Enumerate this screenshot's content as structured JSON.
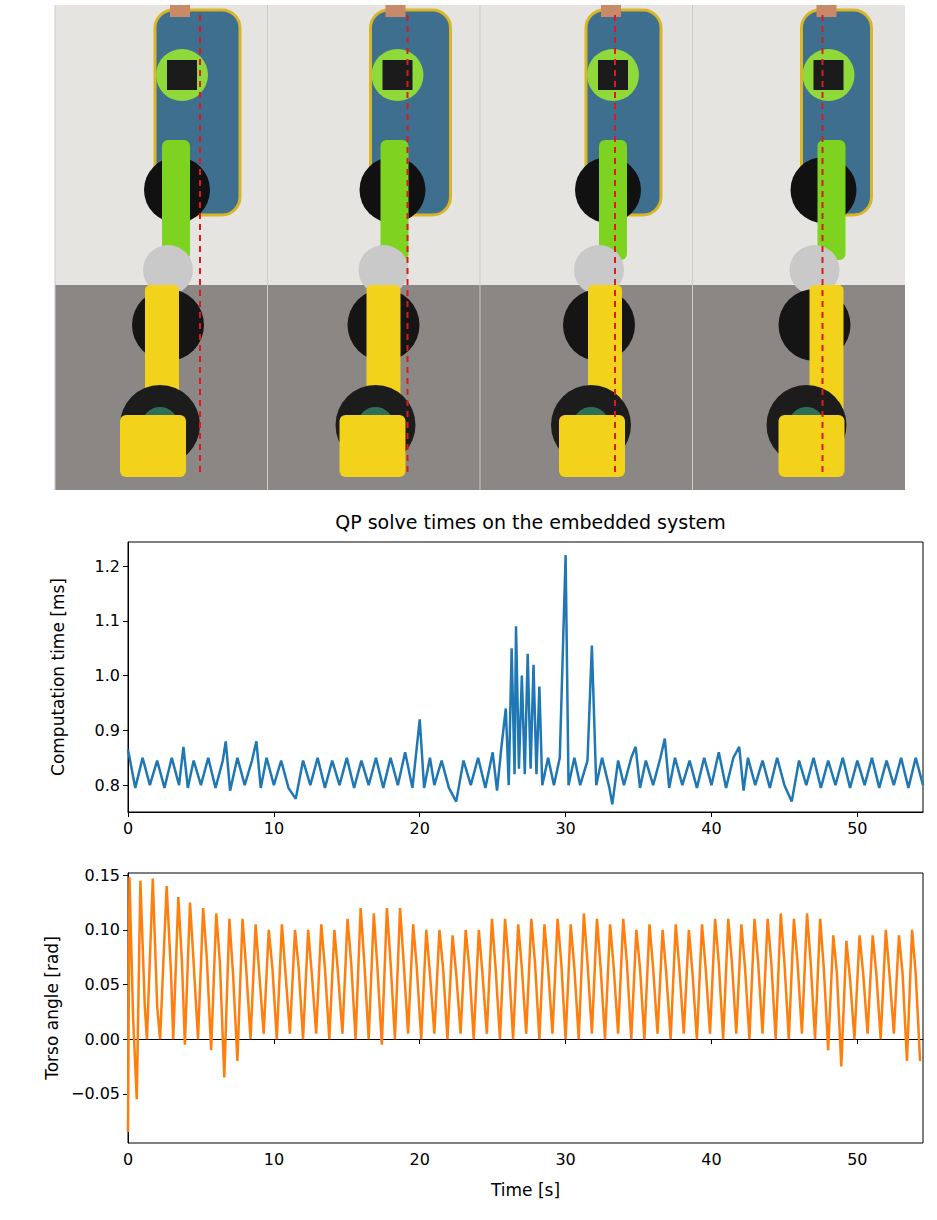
{
  "chart_data": [
    {
      "type": "line",
      "title": "QP solve times on the embedded system",
      "y_label": "Computation time [ms]",
      "color": "#1f77b4",
      "grid": false,
      "xlim": [
        0,
        54.5
      ],
      "xticks": [
        0,
        10,
        20,
        30,
        40,
        50
      ],
      "ylim": [
        0.751,
        1.244
      ],
      "yticks": [
        {
          "value": 0.8,
          "label": "0.8"
        },
        {
          "value": 0.9,
          "label": "0.9"
        },
        {
          "value": 1.0,
          "label": "1.0"
        },
        {
          "value": 1.1,
          "label": "1.1"
        },
        {
          "value": 1.2,
          "label": "1.2"
        }
      ],
      "x": [
        0,
        0.5,
        1,
        1.5,
        2,
        2.5,
        3,
        3.5,
        3.8,
        4.1,
        4.5,
        5,
        5.5,
        6,
        6.5,
        6.7,
        7,
        7.5,
        8,
        8.5,
        8.8,
        9.1,
        9.5,
        10,
        10.5,
        11,
        11.5,
        12,
        12.5,
        13,
        13.5,
        14,
        14.5,
        15,
        15.5,
        16,
        16.5,
        17,
        17.5,
        18,
        18.5,
        19,
        19.5,
        20,
        20.3,
        20.7,
        21,
        21.5,
        22,
        22.5,
        23,
        23.5,
        24,
        24.5,
        25,
        25.3,
        25.6,
        25.9,
        26.1,
        26.3,
        26.5,
        26.6,
        26.8,
        27.0,
        27.2,
        27.4,
        27.6,
        27.8,
        28.0,
        28.2,
        28.4,
        28.8,
        29.2,
        29.6,
        30.0,
        30.2,
        30.6,
        31,
        31.5,
        31.8,
        32.1,
        32.5,
        33,
        33.2,
        33.6,
        34,
        34.5,
        34.8,
        35.1,
        35.5,
        36,
        36.5,
        36.8,
        37.1,
        37.5,
        38,
        38.5,
        39,
        39.5,
        40,
        40.5,
        41,
        41.5,
        41.9,
        42.2,
        42.5,
        43,
        43.5,
        44,
        44.5,
        45,
        45.5,
        46,
        46.5,
        47,
        47.5,
        48,
        48.5,
        49,
        49.5,
        50,
        50.5,
        51,
        51.5,
        52,
        52.5,
        53,
        53.5,
        54,
        54.5
      ],
      "values": [
        0.865,
        0.795,
        0.85,
        0.8,
        0.845,
        0.795,
        0.85,
        0.8,
        0.87,
        0.795,
        0.845,
        0.8,
        0.85,
        0.795,
        0.845,
        0.88,
        0.79,
        0.85,
        0.8,
        0.845,
        0.88,
        0.795,
        0.85,
        0.8,
        0.845,
        0.795,
        0.775,
        0.845,
        0.8,
        0.85,
        0.795,
        0.845,
        0.8,
        0.85,
        0.795,
        0.845,
        0.8,
        0.85,
        0.795,
        0.85,
        0.8,
        0.86,
        0.795,
        0.92,
        0.795,
        0.85,
        0.8,
        0.845,
        0.795,
        0.77,
        0.845,
        0.8,
        0.85,
        0.795,
        0.86,
        0.79,
        0.87,
        0.94,
        0.8,
        1.05,
        0.82,
        1.09,
        0.83,
        1.0,
        0.82,
        1.04,
        0.83,
        1.02,
        0.82,
        0.98,
        0.8,
        0.85,
        0.8,
        0.85,
        1.22,
        0.8,
        0.85,
        0.8,
        0.845,
        1.055,
        0.8,
        0.85,
        0.795,
        0.765,
        0.845,
        0.8,
        0.85,
        0.87,
        0.795,
        0.845,
        0.8,
        0.85,
        0.885,
        0.795,
        0.85,
        0.8,
        0.845,
        0.795,
        0.85,
        0.8,
        0.86,
        0.795,
        0.85,
        0.87,
        0.79,
        0.85,
        0.8,
        0.845,
        0.795,
        0.85,
        0.8,
        0.77,
        0.845,
        0.8,
        0.85,
        0.795,
        0.845,
        0.8,
        0.85,
        0.795,
        0.845,
        0.8,
        0.85,
        0.795,
        0.845,
        0.8,
        0.85,
        0.795,
        0.85,
        0.8
      ]
    },
    {
      "type": "line",
      "y_label": "Torso angle [rad]",
      "x_label": "Time [s]",
      "color": "#ff7f0e",
      "grid": false,
      "xlim": [
        0,
        54.5
      ],
      "xticks": [
        0,
        10,
        20,
        30,
        40,
        50
      ],
      "ylim": [
        -0.095,
        0.152
      ],
      "yticks": [
        {
          "value": -0.05,
          "label": "−0.05"
        },
        {
          "value": 0,
          "label": "0.00"
        },
        {
          "value": 0.05,
          "label": "0.05"
        },
        {
          "value": 0.1,
          "label": "0.10"
        },
        {
          "value": 0.15,
          "label": "0.15"
        }
      ],
      "x": [
        0,
        0.1,
        0.35,
        0.6,
        0.85,
        1.15,
        1.3,
        1.7,
        2.0,
        2.2,
        2.65,
        2.95,
        3.1,
        3.45,
        3.7,
        3.9,
        4.25,
        4.5,
        4.8,
        5.15,
        5.4,
        5.7,
        6.05,
        6.3,
        6.6,
        6.95,
        7.2,
        7.5,
        7.85,
        8.1,
        8.4,
        8.75,
        9.0,
        9.3,
        9.65,
        9.9,
        10.2,
        10.55,
        10.8,
        11.1,
        11.45,
        11.7,
        12.0,
        12.35,
        12.6,
        12.9,
        13.25,
        13.5,
        13.8,
        14.15,
        14.4,
        14.7,
        15.05,
        15.3,
        15.6,
        15.95,
        16.2,
        16.5,
        16.85,
        17.1,
        17.4,
        17.75,
        18.0,
        18.3,
        18.65,
        18.9,
        19.2,
        19.55,
        19.8,
        20.1,
        20.45,
        20.7,
        21.0,
        21.35,
        21.6,
        21.9,
        22.25,
        22.5,
        22.8,
        23.15,
        23.4,
        23.7,
        24.05,
        24.3,
        24.6,
        24.95,
        25.2,
        25.5,
        25.85,
        26.1,
        26.4,
        26.75,
        27.0,
        27.3,
        27.65,
        27.9,
        28.2,
        28.55,
        28.8,
        29.1,
        29.45,
        29.7,
        30.0,
        30.35,
        30.6,
        30.9,
        31.25,
        31.5,
        31.8,
        32.15,
        32.4,
        32.7,
        33.05,
        33.3,
        33.6,
        33.95,
        34.2,
        34.5,
        34.85,
        35.1,
        35.4,
        35.75,
        36.0,
        36.3,
        36.65,
        36.9,
        37.2,
        37.55,
        37.8,
        38.1,
        38.45,
        38.7,
        39.0,
        39.35,
        39.6,
        39.9,
        40.25,
        40.5,
        40.8,
        41.15,
        41.4,
        41.7,
        42.05,
        42.3,
        42.6,
        42.95,
        43.2,
        43.5,
        43.85,
        44.1,
        44.4,
        44.75,
        45.0,
        45.3,
        45.65,
        45.9,
        46.2,
        46.55,
        46.8,
        47.1,
        47.45,
        47.7,
        48.0,
        48.35,
        48.6,
        48.9,
        49.25,
        49.5,
        49.8,
        50.15,
        50.4,
        50.7,
        51.05,
        51.3,
        51.6,
        51.95,
        52.2,
        52.5,
        52.85,
        53.1,
        53.4,
        53.75,
        54.0,
        54.3
      ],
      "values": [
        -0.085,
        0.148,
        0.02,
        -0.055,
        0.145,
        0.03,
        0.0,
        0.147,
        0.03,
        0.0,
        0.14,
        0.06,
        0.0,
        0.13,
        0.07,
        -0.005,
        0.125,
        0.07,
        0.0,
        0.12,
        0.075,
        -0.01,
        0.115,
        0.07,
        -0.035,
        0.11,
        0.06,
        -0.02,
        0.11,
        0.065,
        0.0,
        0.105,
        0.06,
        0.005,
        0.1,
        0.065,
        0.0,
        0.105,
        0.06,
        0.005,
        0.1,
        0.065,
        0.0,
        0.1,
        0.06,
        0.005,
        0.105,
        0.065,
        0.0,
        0.1,
        0.06,
        0.005,
        0.11,
        0.07,
        0.0,
        0.12,
        0.07,
        0.0,
        0.115,
        0.065,
        -0.005,
        0.12,
        0.07,
        0.0,
        0.12,
        0.07,
        0.005,
        0.105,
        0.065,
        0.0,
        0.1,
        0.06,
        0.005,
        0.1,
        0.065,
        0.0,
        0.095,
        0.06,
        0.005,
        0.1,
        0.065,
        0.0,
        0.1,
        0.06,
        0.005,
        0.11,
        0.065,
        0.0,
        0.11,
        0.07,
        0.0,
        0.105,
        0.065,
        0.005,
        0.11,
        0.07,
        0.0,
        0.105,
        0.065,
        0.005,
        0.11,
        0.07,
        0.0,
        0.105,
        0.065,
        0.0,
        0.115,
        0.07,
        0.005,
        0.11,
        0.065,
        0.0,
        0.105,
        0.065,
        0.005,
        0.11,
        0.07,
        0.0,
        0.1,
        0.065,
        0.0,
        0.105,
        0.065,
        0.005,
        0.1,
        0.06,
        0.0,
        0.105,
        0.065,
        0.005,
        0.1,
        0.06,
        0.0,
        0.105,
        0.065,
        0.005,
        0.11,
        0.07,
        0.0,
        0.11,
        0.07,
        0.005,
        0.105,
        0.065,
        0.0,
        0.11,
        0.07,
        0.005,
        0.11,
        0.07,
        0.0,
        0.115,
        0.07,
        0.0,
        0.11,
        0.07,
        0.005,
        0.115,
        0.07,
        0.0,
        0.11,
        0.065,
        -0.01,
        0.095,
        0.06,
        -0.025,
        0.09,
        0.055,
        0.0,
        0.095,
        0.06,
        0.005,
        0.095,
        0.06,
        0.0,
        0.1,
        0.06,
        0.005,
        0.095,
        0.06,
        -0.02,
        0.1,
        0.06,
        -0.02
      ]
    }
  ]
}
